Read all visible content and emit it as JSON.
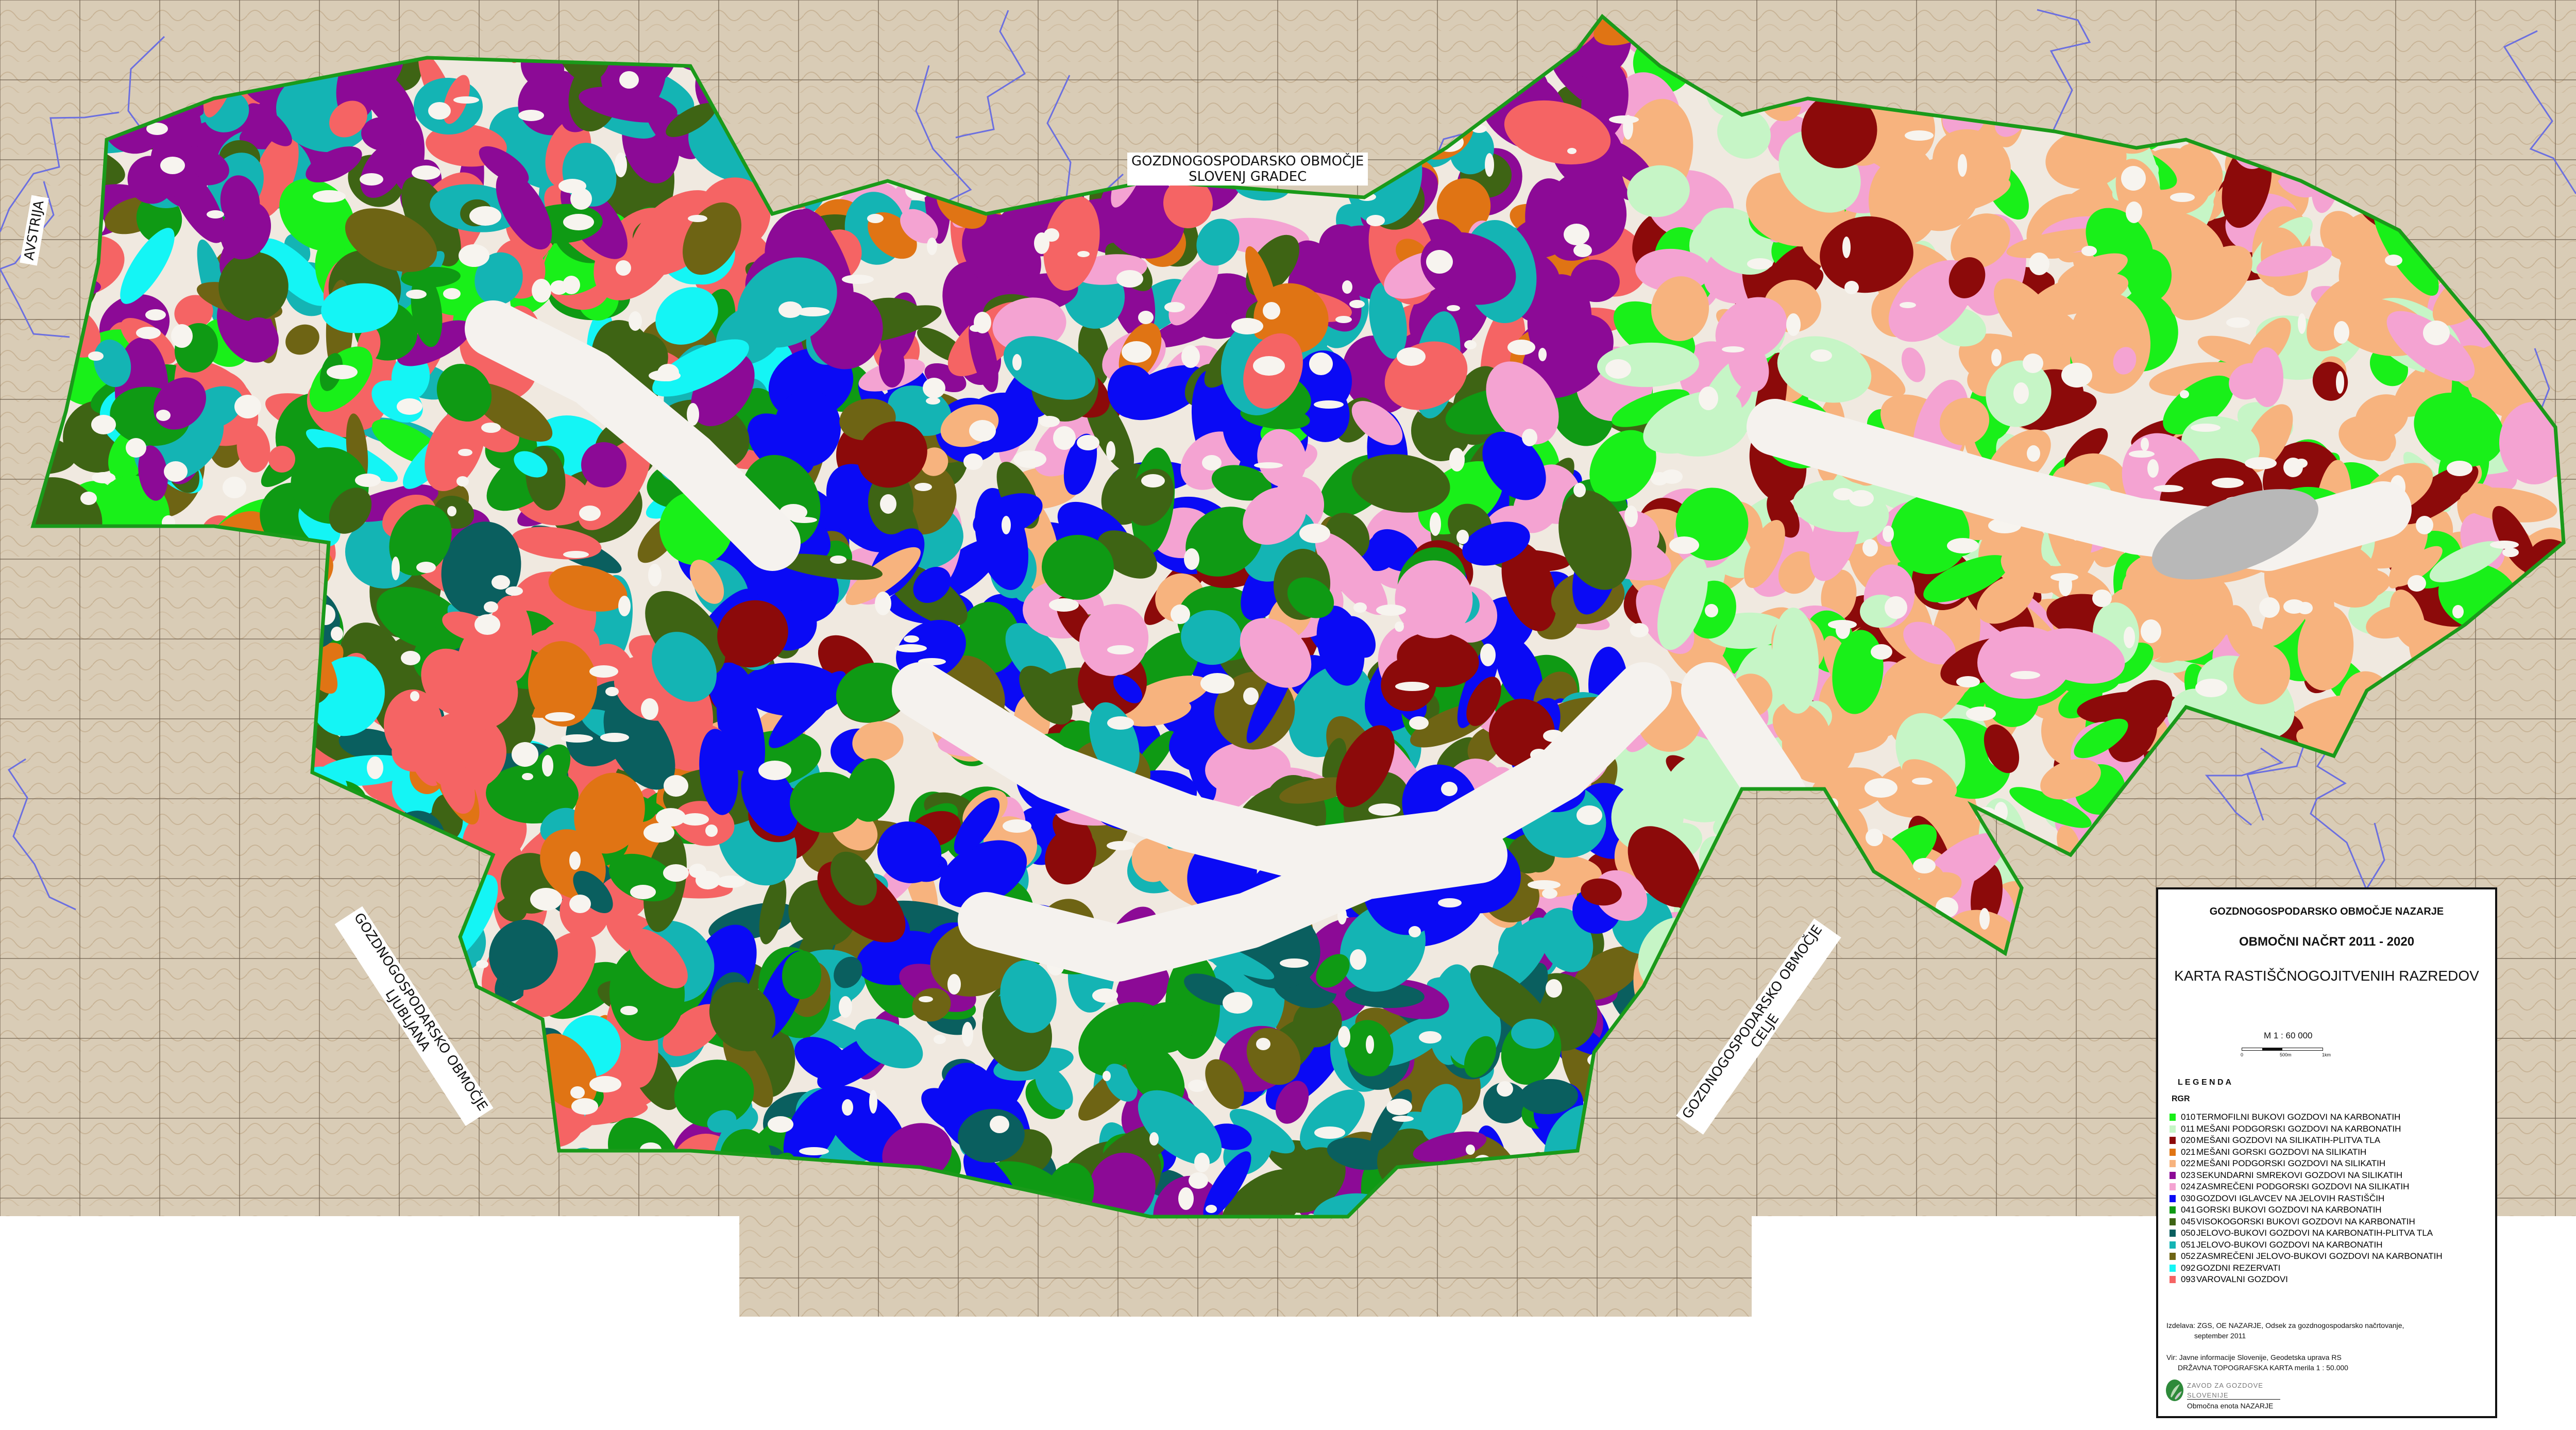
{
  "map": {
    "region_labels": {
      "north": [
        "GOZDNOGOSPODARSKO OBMOČJE",
        "SLOVENJ GRADEC"
      ],
      "west": "AVSTRIJA",
      "southwest": [
        "GOZDNOGOSPODARSKO OBMOČJE",
        "LJUBLJANA"
      ],
      "southeast": [
        "GOZDNOGOSPODARSKO OBMOČJE",
        "CELJE"
      ]
    },
    "boundary_color": "#1a9a1a",
    "topo_background_color": "#d9ccb6"
  },
  "legend_box": {
    "area_header": "GOZDNOGOSPODARSKO  OBMOČJE  NAZARJE",
    "plan_title": "OBMOČNI NAČRT 2011 - 2020",
    "map_title": "KARTA RASTIŠČNOGOJITVENIH RAZREDOV",
    "scale": {
      "label": "M 1 : 60 000",
      "ticks": [
        "0",
        "500m",
        "1km"
      ]
    },
    "legend_heading": "L E G E N D A",
    "legend_group": "RGR",
    "items": [
      {
        "code": "010",
        "label": "TERMOFILNI BUKOVI GOZDOVI NA KARBONATIH",
        "color": "#19f019"
      },
      {
        "code": "011",
        "label": "MEŠANI PODGORSKI GOZDOVI NA KARBONATIH",
        "color": "#c6f5c6"
      },
      {
        "code": "020",
        "label": "MEŠANI GOZDOVI NA SILIKATIH-PLITVA TLA",
        "color": "#8c0a0a"
      },
      {
        "code": "021",
        "label": "MEŠANI GORSKI GOZDOVI NA SILIKATIH",
        "color": "#e07414"
      },
      {
        "code": "022",
        "label": "MEŠANI PODGORSKI GOZDOVI NA SILIKATIH",
        "color": "#f7b37e"
      },
      {
        "code": "023",
        "label": "SEKUNDARNI SMREKOVI GOZDOVI NA SILIKATIH",
        "color": "#8c0a96"
      },
      {
        "code": "024",
        "label": "ZASMREČENI PODGORSKI GOZDOVI NA SILIKATIH",
        "color": "#f4a3d2"
      },
      {
        "code": "030",
        "label": "GOZDOVI IGLAVCEV NA JELOVIH RASTIŠČIH",
        "color": "#0a0af5"
      },
      {
        "code": "041",
        "label": "GORSKI  BUKOVI GOZDOVI NA KARBONATIH",
        "color": "#0f9a14"
      },
      {
        "code": "045",
        "label": "VISOKOGORSKI BUKOVI GOZDOVI NA KARBONATIH",
        "color": "#3e6414"
      },
      {
        "code": "050",
        "label": "JELOVO-BUKOVI GOZDOVI NA KARBONATIH-PLITVA TLA",
        "color": "#0a5f5f"
      },
      {
        "code": "051",
        "label": "JELOVO-BUKOVI GOZDOVI NA KARBONATIH",
        "color": "#14b4b4"
      },
      {
        "code": "052",
        "label": "ZASMREČENI JELOVO-BUKOVI GOZDOVI NA KARBONATIH",
        "color": "#6e6414"
      },
      {
        "code": "092",
        "label": "GOZDNI REZERVATI",
        "color": "#14f5f5"
      },
      {
        "code": "093",
        "label": "VAROVALNI GOZDOVI",
        "color": "#f56464"
      }
    ],
    "credits": {
      "made_by": "Izdelava: ZGS,  OE  NAZARJE,  Odsek  za  gozdnogospodarsko  načrtovanje,",
      "made_date": "september 2011",
      "source": "Vir: Javne informacije Slovenije, Geodetska uprava RS",
      "source_map": "DRŽAVNA  TOPOGRAFSKA  KARTA  merila  1 : 50.000",
      "logo_text": [
        "ZAVOD  ZA  GOZDOVE",
        "SLOVENIJE"
      ],
      "unit": "Območna  enota  NAZARJE"
    }
  }
}
